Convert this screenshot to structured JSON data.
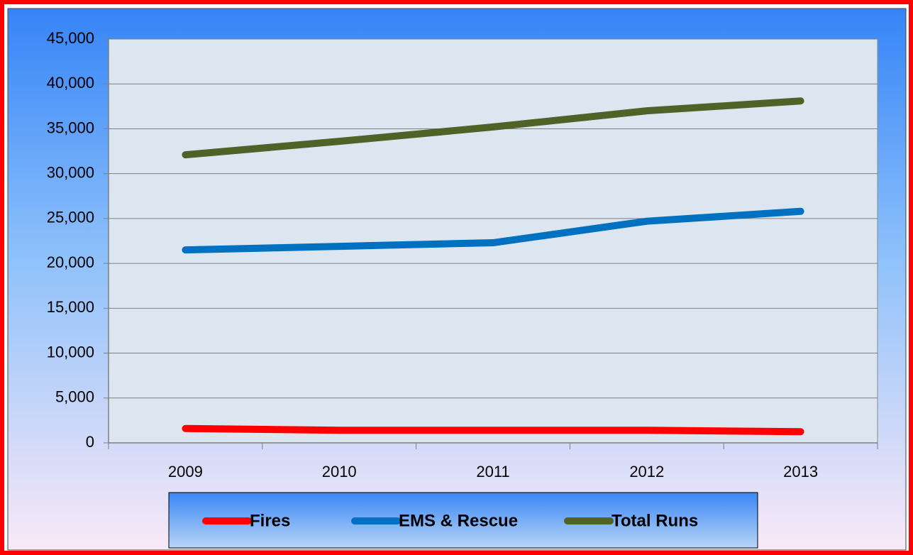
{
  "chart_data": {
    "type": "line",
    "categories": [
      "2009",
      "2010",
      "2011",
      "2012",
      "2013"
    ],
    "series": [
      {
        "name": "Fires",
        "color": "#ff0000",
        "values": [
          1600,
          1400,
          1400,
          1400,
          1250
        ]
      },
      {
        "name": "EMS & Rescue",
        "color": "#0070c0",
        "values": [
          21500,
          21900,
          22300,
          24700,
          25800
        ]
      },
      {
        "name": "Total Runs",
        "color": "#4f6228",
        "values": [
          32100,
          33600,
          35200,
          37000,
          38100
        ]
      }
    ],
    "ylim": [
      0,
      45000
    ],
    "yticks": [
      0,
      {
        "value": 5000,
        "label": "5,000"
      },
      {
        "value": 10000,
        "label": "10,000"
      },
      {
        "value": 15000,
        "label": "15,000"
      },
      {
        "value": 20000,
        "label": "20,000"
      },
      {
        "value": 25000,
        "label": "25,000"
      },
      {
        "value": 30000,
        "label": "30,000"
      },
      {
        "value": 35000,
        "label": "35,000"
      },
      {
        "value": 40000,
        "label": "40,000"
      },
      {
        "value": 45000,
        "label": "45,000"
      }
    ],
    "grid": true,
    "legend": "bottom"
  }
}
